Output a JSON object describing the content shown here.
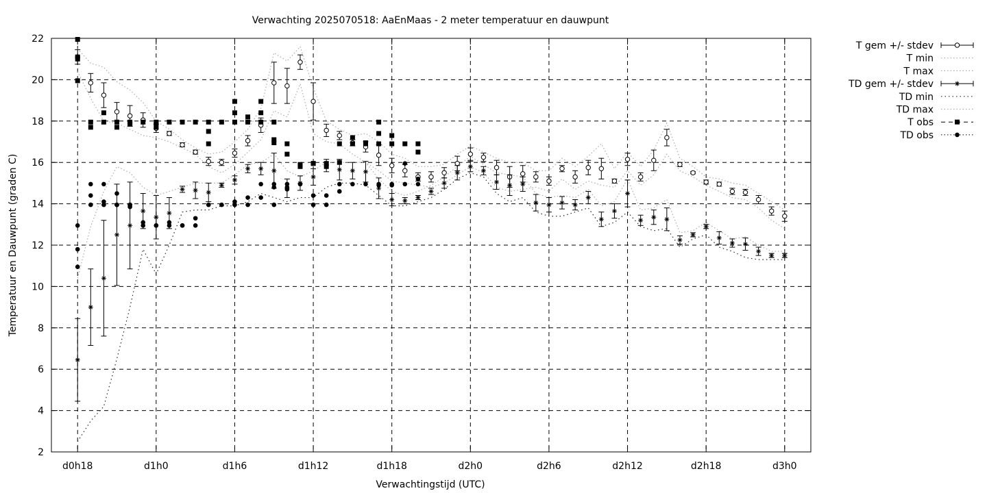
{
  "chart_data": {
    "type": "scatter",
    "title": "Verwachting 2025070518: AaEnMaas - 2 meter temperatuur en dauwpunt",
    "xlabel": "Verwachtingstijd (UTC)",
    "ylabel": "Temperatuur en Dauwpunt (graden C)",
    "x_unit": "hour",
    "x_ticks": [
      {
        "label": "d0h18",
        "x": 0
      },
      {
        "label": "d1h0",
        "x": 6
      },
      {
        "label": "d1h6",
        "x": 12
      },
      {
        "label": "d1h12",
        "x": 18
      },
      {
        "label": "d1h18",
        "x": 24
      },
      {
        "label": "d2h0",
        "x": 30
      },
      {
        "label": "d2h6",
        "x": 36
      },
      {
        "label": "d2h12",
        "x": 42
      },
      {
        "label": "d2h18",
        "x": 48
      },
      {
        "label": "d3h0",
        "x": 54
      }
    ],
    "xlim": [
      -2,
      56
    ],
    "ylim": [
      2,
      22
    ],
    "y_ticks": [
      2,
      4,
      6,
      8,
      10,
      12,
      14,
      16,
      18,
      20,
      22
    ],
    "grid": true,
    "legend_position": "outside-right",
    "legend": [
      {
        "label": "T gem +/- stdev",
        "style": "errorbar-open-circle"
      },
      {
        "label": "T min",
        "style": "dotted-gray"
      },
      {
        "label": "T max",
        "style": "dotted-gray"
      },
      {
        "label": "TD gem +/- stdev",
        "style": "errorbar-asterisk"
      },
      {
        "label": "TD min",
        "style": "dotted-black"
      },
      {
        "label": "TD max",
        "style": "dotted-gray"
      },
      {
        "label": "T obs",
        "style": "filled-square"
      },
      {
        "label": "TD obs",
        "style": "filled-circle"
      }
    ],
    "series": {
      "t_mean": {
        "x": [
          0,
          1,
          2,
          3,
          4,
          5,
          6,
          7,
          8,
          9,
          10,
          11,
          12,
          13,
          14,
          15,
          16,
          17,
          18,
          19,
          20,
          21,
          22,
          23,
          24,
          25,
          26,
          27,
          28,
          29,
          30,
          31,
          32,
          33,
          34,
          35,
          36,
          37,
          38,
          39,
          40,
          41,
          42,
          43,
          44,
          45,
          46,
          47,
          48,
          49,
          50,
          51,
          52,
          53,
          54
        ],
        "y": [
          21.1,
          19.85,
          19.25,
          18.45,
          18.25,
          18.05,
          17.65,
          17.4,
          16.85,
          16.5,
          16.05,
          16.0,
          16.45,
          17.05,
          17.8,
          19.85,
          19.7,
          20.85,
          18.95,
          17.55,
          17.3,
          16.95,
          16.75,
          16.35,
          15.85,
          15.6,
          15.3,
          15.3,
          15.5,
          15.95,
          16.4,
          16.25,
          15.75,
          15.3,
          15.45,
          15.3,
          15.1,
          15.7,
          15.3,
          15.75,
          15.7,
          15.1,
          16.15,
          15.3,
          16.1,
          17.2,
          15.9,
          15.5,
          15.05,
          14.95,
          14.6,
          14.55,
          14.2,
          13.65,
          13.4
        ],
        "stdev": [
          0.35,
          0.45,
          0.6,
          0.45,
          0.5,
          0.35,
          0.2,
          0.1,
          0.1,
          0.1,
          0.2,
          0.15,
          0.2,
          0.25,
          0.35,
          1.0,
          0.85,
          0.35,
          0.9,
          0.3,
          0.2,
          0.15,
          0.25,
          0.5,
          0.35,
          0.3,
          0.2,
          0.25,
          0.25,
          0.35,
          0.3,
          0.2,
          0.35,
          0.5,
          0.4,
          0.25,
          0.2,
          0.15,
          0.3,
          0.35,
          0.5,
          0.1,
          0.3,
          0.2,
          0.5,
          0.4,
          0.1,
          0.05,
          0.1,
          0.1,
          0.15,
          0.15,
          0.2,
          0.2,
          0.25
        ]
      },
      "t_min": {
        "x": [
          0,
          1,
          2,
          3,
          4,
          5,
          6,
          7,
          8,
          9,
          10,
          11,
          12,
          13,
          14,
          15,
          16,
          17,
          18,
          19,
          20,
          21,
          22,
          23,
          24,
          25,
          26,
          27,
          28,
          29,
          30,
          31,
          32,
          33,
          34,
          35,
          36,
          37,
          38,
          39,
          40,
          41,
          42,
          43,
          44,
          45,
          46,
          47,
          48,
          49,
          50,
          51,
          52,
          53,
          54
        ],
        "y": [
          20.4,
          19.1,
          18.0,
          17.9,
          17.6,
          17.3,
          17.2,
          17.0,
          16.7,
          16.4,
          15.8,
          15.5,
          15.9,
          16.5,
          17.1,
          18.5,
          18.2,
          19.8,
          17.4,
          17.0,
          16.9,
          16.4,
          16.0,
          15.6,
          15.1,
          15.0,
          14.9,
          14.8,
          15.0,
          15.4,
          15.8,
          15.5,
          14.8,
          14.6,
          14.7,
          14.8,
          14.6,
          15.2,
          14.7,
          15.1,
          14.9,
          14.8,
          15.6,
          14.9,
          15.4,
          16.4,
          15.6,
          15.3,
          14.9,
          14.6,
          14.3,
          14.2,
          13.8,
          13.2,
          12.8
        ]
      },
      "t_max": {
        "x": [
          0,
          1,
          2,
          3,
          4,
          5,
          6,
          7,
          8,
          9,
          10,
          11,
          12,
          13,
          14,
          15,
          16,
          17,
          18,
          19,
          20,
          21,
          22,
          23,
          24,
          25,
          26,
          27,
          28,
          29,
          30,
          31,
          32,
          33,
          34,
          35,
          36,
          37,
          38,
          39,
          40,
          41,
          42,
          43,
          44,
          45,
          46,
          47,
          48,
          49,
          50,
          51,
          52,
          53,
          54
        ],
        "y": [
          21.5,
          20.8,
          20.6,
          19.9,
          19.5,
          18.9,
          18.0,
          17.6,
          17.1,
          16.7,
          16.4,
          16.5,
          17.0,
          17.6,
          18.6,
          21.3,
          20.9,
          21.6,
          19.6,
          18.0,
          17.6,
          17.3,
          17.4,
          17.0,
          16.4,
          16.2,
          15.8,
          15.8,
          15.9,
          16.4,
          16.8,
          16.5,
          16.2,
          16.0,
          16.0,
          15.6,
          15.6,
          16.2,
          15.8,
          16.3,
          16.9,
          15.7,
          16.5,
          15.8,
          16.6,
          17.9,
          16.2,
          15.8,
          15.3,
          15.2,
          15.0,
          14.9,
          14.5,
          14.1,
          13.7
        ]
      },
      "td_mean": {
        "x": [
          0,
          1,
          2,
          3,
          4,
          5,
          6,
          7,
          8,
          9,
          10,
          11,
          12,
          13,
          14,
          15,
          16,
          17,
          18,
          19,
          20,
          21,
          22,
          23,
          24,
          25,
          26,
          27,
          28,
          29,
          30,
          31,
          32,
          33,
          34,
          35,
          36,
          37,
          38,
          39,
          40,
          41,
          42,
          43,
          44,
          45,
          46,
          47,
          48,
          49,
          50,
          51,
          52,
          53,
          54
        ],
        "y": [
          6.45,
          9.0,
          10.4,
          12.5,
          12.95,
          13.65,
          13.35,
          13.55,
          14.7,
          14.65,
          14.55,
          14.9,
          15.15,
          15.7,
          15.7,
          15.6,
          14.75,
          15.0,
          15.3,
          15.85,
          15.65,
          15.6,
          15.55,
          14.75,
          14.2,
          14.15,
          14.3,
          14.6,
          15.0,
          15.5,
          15.8,
          15.6,
          15.05,
          14.9,
          14.95,
          14.05,
          13.95,
          14.05,
          13.95,
          14.3,
          13.25,
          13.65,
          14.5,
          13.2,
          13.35,
          13.25,
          12.25,
          12.5,
          12.9,
          12.35,
          12.1,
          12.05,
          11.7,
          11.5,
          11.5
        ]
      },
      "td_stdev": [
        2.0,
        1.85,
        2.8,
        2.45,
        2.1,
        0.85,
        1.05,
        0.75,
        0.15,
        0.4,
        0.45,
        0.1,
        0.2,
        0.2,
        0.3,
        0.85,
        0.45,
        0.35,
        0.4,
        0.3,
        0.5,
        0.4,
        0.5,
        0.5,
        0.3,
        0.15,
        0.1,
        0.15,
        0.25,
        0.35,
        0.25,
        0.2,
        0.35,
        0.5,
        0.35,
        0.4,
        0.35,
        0.3,
        0.25,
        0.3,
        0.35,
        0.35,
        0.65,
        0.25,
        0.35,
        0.55,
        0.2,
        0.1,
        0.1,
        0.3,
        0.2,
        0.3,
        0.2,
        0.1,
        0.1
      ],
      "td_min": {
        "x": [
          0,
          1,
          2,
          3,
          4,
          5,
          6,
          7,
          8,
          9,
          10,
          11,
          12,
          13,
          14,
          15,
          16,
          17,
          18,
          19,
          20,
          21,
          22,
          23,
          24,
          25,
          26,
          27,
          28,
          29,
          30,
          31,
          32,
          33,
          34,
          35,
          36,
          37,
          38,
          39,
          40,
          41,
          42,
          43,
          44,
          45,
          46,
          47,
          48,
          49,
          50,
          51,
          52,
          53,
          54
        ],
        "y": [
          2.5,
          3.5,
          4.2,
          6.5,
          9.0,
          11.8,
          10.6,
          12.0,
          13.6,
          13.7,
          13.7,
          13.9,
          13.9,
          14.1,
          14.5,
          14.3,
          14.1,
          14.3,
          14.3,
          14.8,
          15.0,
          15.0,
          14.9,
          14.4,
          13.9,
          13.9,
          14.1,
          14.3,
          14.7,
          15.2,
          15.5,
          15.3,
          14.5,
          14.1,
          14.3,
          13.6,
          13.4,
          13.4,
          13.6,
          13.8,
          12.9,
          13.1,
          13.6,
          12.9,
          12.7,
          12.8,
          11.9,
          12.3,
          12.5,
          11.9,
          11.7,
          11.4,
          11.3,
          11.3,
          11.3
        ]
      },
      "td_max": {
        "x": [
          0,
          1,
          2,
          3,
          4,
          5,
          6,
          7,
          8,
          9,
          10,
          11,
          12,
          13,
          14,
          15,
          16,
          17,
          18,
          19,
          20,
          21,
          22,
          23,
          24,
          25,
          26,
          27,
          28,
          29,
          30,
          31,
          32,
          33,
          34,
          35,
          36,
          37,
          38,
          39,
          40,
          41,
          42,
          43,
          44,
          45,
          46,
          47,
          48,
          49,
          50,
          51,
          52,
          53,
          54
        ],
        "y": [
          10.4,
          12.9,
          14.6,
          15.8,
          15.5,
          14.8,
          14.4,
          14.6,
          14.8,
          15.0,
          15.0,
          15.0,
          15.4,
          15.9,
          16.0,
          16.4,
          15.6,
          15.3,
          15.6,
          16.0,
          16.0,
          16.0,
          16.0,
          15.2,
          14.6,
          14.4,
          14.6,
          14.9,
          15.3,
          15.8,
          16.3,
          15.9,
          15.5,
          15.4,
          15.3,
          14.5,
          14.3,
          14.4,
          14.3,
          14.7,
          13.9,
          14.1,
          15.2,
          13.7,
          13.8,
          14.2,
          12.6,
          12.7,
          13.1,
          12.7,
          12.3,
          12.4,
          12.0,
          11.7,
          11.7
        ]
      },
      "t_obs": {
        "x": [
          0,
          0,
          0,
          0,
          1,
          1,
          2,
          2,
          3,
          3,
          4,
          4,
          5,
          6,
          6,
          6,
          7,
          8,
          9,
          10,
          10,
          10,
          11,
          12,
          12,
          12,
          13,
          13,
          14,
          14,
          14,
          15,
          15,
          15,
          16,
          16,
          17,
          17,
          18,
          18,
          19,
          19,
          20,
          20,
          21,
          21,
          22,
          22,
          23,
          23,
          23,
          24,
          24,
          25,
          26,
          26
        ],
        "y": [
          21.95,
          21.1,
          21.0,
          19.95,
          17.95,
          17.7,
          18.4,
          17.95,
          17.95,
          17.7,
          17.95,
          17.85,
          17.95,
          17.95,
          17.85,
          17.7,
          17.95,
          17.95,
          17.95,
          17.95,
          17.5,
          16.9,
          17.95,
          18.95,
          18.4,
          17.95,
          18.2,
          17.95,
          18.95,
          18.4,
          17.95,
          17.95,
          17.1,
          16.95,
          16.9,
          16.4,
          15.9,
          15.8,
          15.95,
          15.95,
          15.95,
          15.8,
          16.9,
          16.0,
          17.2,
          16.9,
          16.95,
          16.9,
          17.95,
          17.4,
          16.9,
          17.3,
          16.9,
          16.9,
          16.9,
          16.5
        ]
      },
      "td_obs": {
        "x": [
          0,
          0,
          0,
          1,
          1,
          1,
          2,
          2,
          2,
          3,
          3,
          3,
          4,
          4,
          4,
          5,
          5,
          6,
          6,
          7,
          7,
          8,
          8,
          9,
          9,
          10,
          11,
          12,
          12,
          13,
          13,
          14,
          14,
          15,
          15,
          15,
          16,
          16,
          16,
          17,
          17,
          18,
          18,
          19,
          19,
          20,
          20,
          21,
          22,
          23,
          23,
          24,
          24,
          25,
          25,
          26,
          26
        ],
        "y": [
          12.95,
          11.8,
          10.95,
          14.95,
          14.4,
          13.95,
          14.95,
          14.1,
          13.95,
          14.5,
          13.95,
          13.95,
          13.95,
          13.85,
          13.95,
          13.1,
          12.95,
          12.95,
          12.95,
          13.1,
          12.95,
          12.95,
          12.95,
          13.3,
          12.95,
          13.95,
          13.95,
          13.95,
          14.1,
          13.95,
          14.3,
          14.95,
          14.3,
          14.95,
          14.8,
          13.95,
          14.95,
          14.8,
          14.7,
          14.95,
          14.95,
          13.95,
          14.4,
          13.95,
          14.4,
          14.95,
          14.6,
          14.95,
          14.95,
          14.95,
          14.9,
          14.95,
          14.9,
          14.95,
          15.95,
          15.2,
          14.95
        ]
      }
    }
  }
}
